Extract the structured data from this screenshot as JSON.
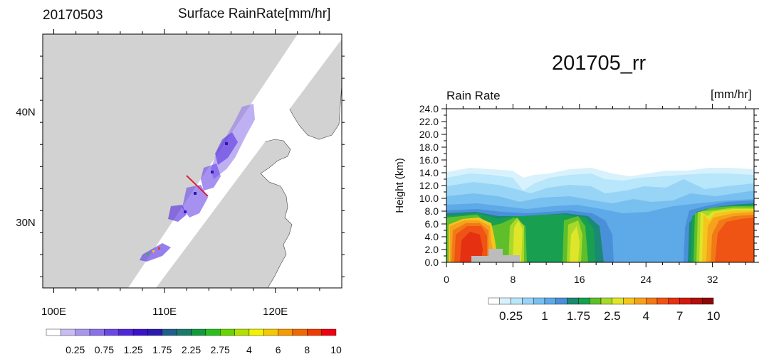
{
  "left_panel": {
    "date_label": "20170503",
    "title": "Surface RainRate[mm/hr]"
  },
  "right_panel": {
    "title": "201705_rr",
    "left_label": "Rain Rate",
    "right_label": "[mm/hr]"
  },
  "colors": {
    "land": "#d2d2d2",
    "ocean": "#ffffff",
    "track_line": "#e0203a",
    "left_scale": [
      "#ffffff",
      "#c8bdf3",
      "#a896ee",
      "#8a70ea",
      "#6a47e6",
      "#5026dd",
      "#3a12cc",
      "#2a1ab0",
      "#1f5f8a",
      "#1a7a6a",
      "#119a3c",
      "#2bbf1e",
      "#6ad400",
      "#b4e000",
      "#f2f200",
      "#f5c800",
      "#f59a00",
      "#f26800",
      "#f03a00",
      "#f00010"
    ],
    "right_scale": [
      "#ffffff",
      "#d8f2fd",
      "#b8e6fb",
      "#98d4f6",
      "#78c0f0",
      "#5eaae8",
      "#4a90d8",
      "#1a8a74",
      "#18a050",
      "#5fbf2a",
      "#a8d82c",
      "#dfe528",
      "#f5c51e",
      "#f5a21c",
      "#f27a16",
      "#ef5414",
      "#e53012",
      "#cf1a10",
      "#b30e0e",
      "#8e0808"
    ]
  },
  "chart_data": [
    {
      "type": "heatmap",
      "subtype": "map",
      "title": "Surface RainRate[mm/hr]",
      "subtitle": "20170503",
      "xlabel": "",
      "ylabel": "",
      "xlim": [
        99,
        126
      ],
      "ylim": [
        24,
        47
      ],
      "x_ticks": [
        "100E",
        "110E",
        "120E"
      ],
      "y_ticks": [
        "30N",
        "40N"
      ],
      "colorbar_labels": [
        "0.25",
        "0.75",
        "1.25",
        "1.75",
        "2.25",
        "2.75",
        "4",
        "6",
        "8",
        "10"
      ]
    },
    {
      "type": "heatmap",
      "subtype": "contour",
      "title": "201705_rr",
      "xlabel": "",
      "ylabel": "Height (km)",
      "xlim": [
        0,
        37
      ],
      "ylim": [
        0,
        24
      ],
      "x_ticks": [
        "0",
        "8",
        "16",
        "24",
        "32"
      ],
      "y_ticks": [
        "0.0",
        "2.0",
        "4.0",
        "6.0",
        "8.0",
        "10.0",
        "12.0",
        "14.0",
        "16.0",
        "18.0",
        "20.0",
        "22.0",
        "24.0"
      ],
      "colorbar_labels": [
        "0.25",
        "1",
        "1.75",
        "2.5",
        "4",
        "7",
        "10"
      ]
    }
  ]
}
